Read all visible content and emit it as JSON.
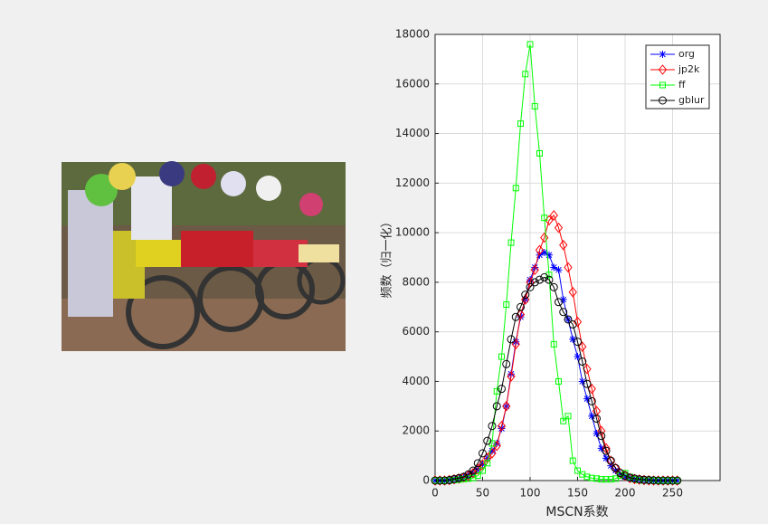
{
  "chart_data": {
    "type": "line",
    "x_label": "MSCN系数",
    "y_label": "频数（归一化）",
    "x": [
      0,
      5,
      10,
      15,
      20,
      25,
      30,
      35,
      40,
      45,
      50,
      55,
      60,
      65,
      70,
      75,
      80,
      85,
      90,
      95,
      100,
      105,
      110,
      115,
      120,
      125,
      130,
      135,
      140,
      145,
      150,
      155,
      160,
      165,
      170,
      175,
      180,
      185,
      190,
      195,
      200,
      205,
      210,
      215,
      220,
      225,
      230,
      235,
      240,
      245,
      250,
      255
    ],
    "series": [
      {
        "name": "org",
        "color": "#0000ff",
        "marker": "star",
        "values": [
          0,
          0,
          0,
          20,
          50,
          80,
          120,
          200,
          300,
          450,
          650,
          900,
          1200,
          1500,
          2100,
          3000,
          4300,
          5600,
          6600,
          7300,
          8100,
          8600,
          9100,
          9200,
          9100,
          8600,
          8500,
          7300,
          6500,
          5700,
          5000,
          4000,
          3300,
          2600,
          1900,
          1300,
          900,
          600,
          400,
          250,
          150,
          100,
          60,
          40,
          20,
          10,
          0,
          0,
          0,
          0,
          0,
          0
        ]
      },
      {
        "name": "jp2k",
        "color": "#ff0000",
        "marker": "diamond",
        "values": [
          0,
          0,
          0,
          20,
          50,
          80,
          120,
          200,
          300,
          450,
          650,
          900,
          1100,
          1400,
          2200,
          3000,
          4200,
          5500,
          6700,
          7300,
          8000,
          8500,
          9300,
          9800,
          10500,
          10700,
          10200,
          9500,
          8600,
          7600,
          6400,
          5400,
          4500,
          3700,
          2800,
          2000,
          1300,
          800,
          500,
          300,
          200,
          100,
          60,
          40,
          20,
          10,
          0,
          0,
          0,
          0,
          0,
          0
        ]
      },
      {
        "name": "ff",
        "color": "#00ff00",
        "marker": "square",
        "values": [
          0,
          0,
          0,
          0,
          20,
          40,
          60,
          80,
          100,
          200,
          400,
          700,
          1500,
          3600,
          5000,
          7100,
          9600,
          11800,
          14400,
          16400,
          17600,
          15100,
          13200,
          10600,
          8300,
          5500,
          4000,
          2400,
          2600,
          800,
          400,
          250,
          150,
          100,
          80,
          50,
          50,
          50,
          80,
          200,
          300,
          150,
          60,
          20,
          0,
          0,
          0,
          0,
          0,
          0,
          0,
          0
        ]
      },
      {
        "name": "gblur",
        "color": "#000000",
        "marker": "circle",
        "values": [
          0,
          0,
          0,
          20,
          60,
          100,
          150,
          250,
          400,
          700,
          1100,
          1600,
          2200,
          3000,
          3700,
          4700,
          5700,
          6600,
          7000,
          7500,
          7800,
          8000,
          8100,
          8200,
          8100,
          7800,
          7200,
          6800,
          6500,
          6300,
          5600,
          4800,
          3900,
          3200,
          2500,
          1800,
          1200,
          800,
          500,
          300,
          200,
          120,
          80,
          50,
          30,
          20,
          10,
          0,
          0,
          0,
          0,
          0
        ]
      }
    ],
    "xlim": [
      0,
      300
    ],
    "xticks": [
      0,
      50,
      100,
      150,
      200,
      250
    ],
    "ylim": [
      0,
      18000
    ],
    "yticks": [
      0,
      2000,
      4000,
      6000,
      8000,
      10000,
      12000,
      14000,
      16000,
      18000
    ],
    "grid": true,
    "legend": "northeast"
  }
}
